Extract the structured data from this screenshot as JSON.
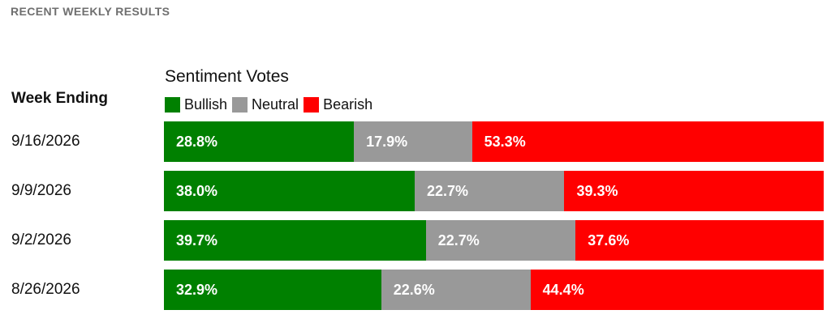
{
  "section_title": "RECENT WEEKLY RESULTS",
  "column_header": "Week Ending",
  "chart_data": {
    "type": "bar",
    "stacked": true,
    "orientation": "horizontal",
    "normalized_percent": true,
    "title": "Sentiment Votes",
    "categories": [
      "9/16/2026",
      "9/9/2026",
      "9/2/2026",
      "8/26/2026"
    ],
    "series": [
      {
        "name": "Bullish",
        "color": "#008000",
        "values": [
          28.8,
          38.0,
          39.7,
          32.9
        ],
        "labels": [
          "28.8%",
          "38.0%",
          "39.7%",
          "32.9%"
        ]
      },
      {
        "name": "Neutral",
        "color": "#999999",
        "values": [
          17.9,
          22.7,
          22.7,
          22.6
        ],
        "labels": [
          "17.9%",
          "22.7%",
          "22.7%",
          "22.6%"
        ]
      },
      {
        "name": "Bearish",
        "color": "#ff0000",
        "values": [
          53.3,
          39.3,
          37.6,
          44.4
        ],
        "labels": [
          "53.3%",
          "39.3%",
          "37.6%",
          "44.4%"
        ]
      }
    ],
    "legend_position": "top-left",
    "grid": false
  }
}
